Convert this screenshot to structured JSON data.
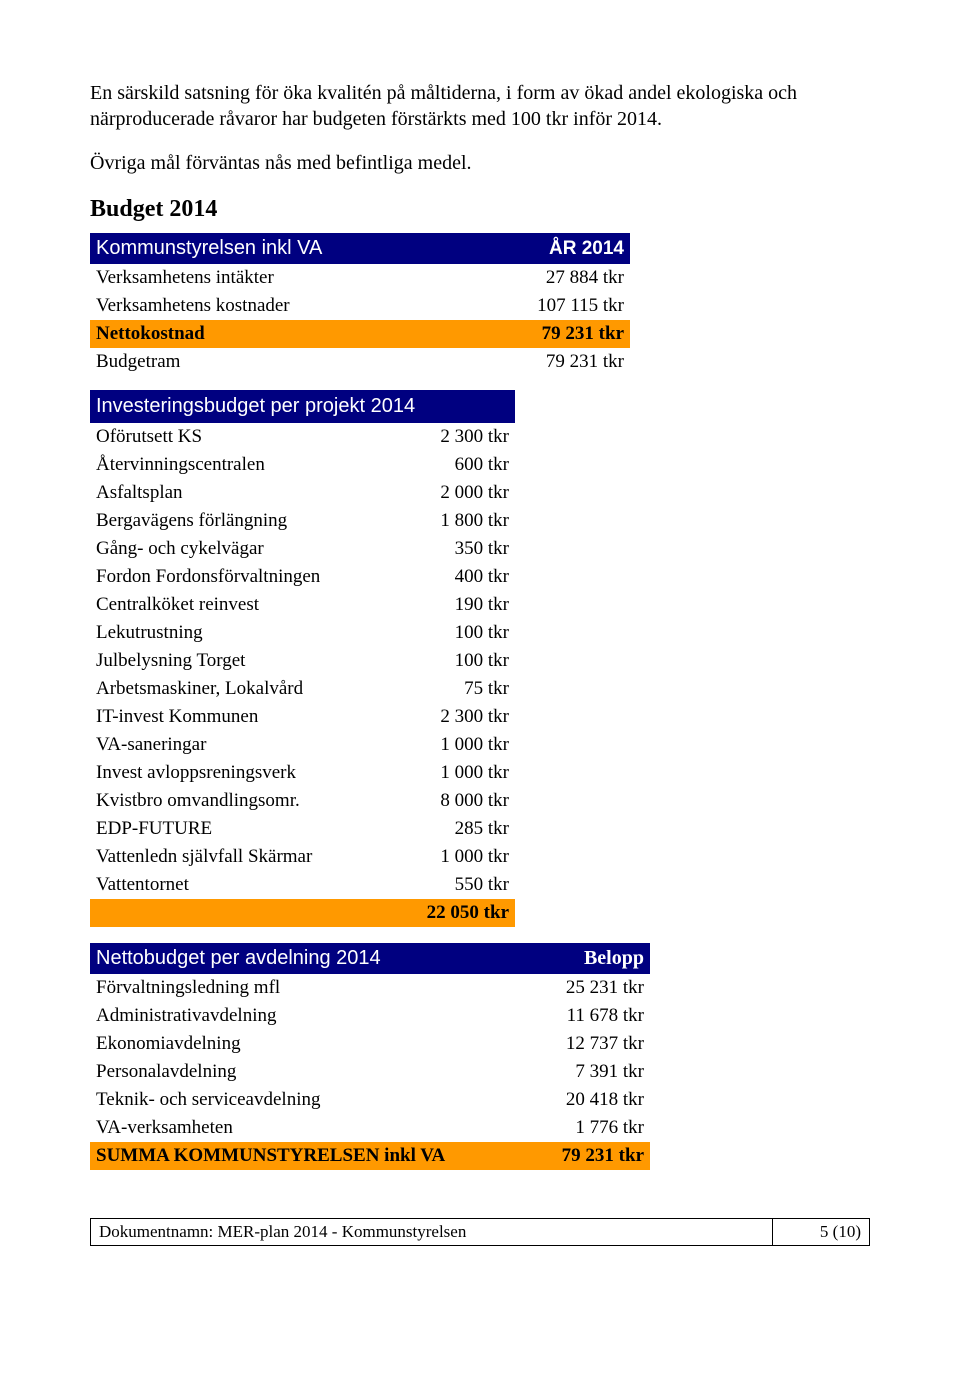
{
  "intro": {
    "para1": "En särskild satsning för öka kvalitén på måltiderna, i form av ökad andel ekologiska och närproducerade råvaror har budgeten förstärkts med 100 tkr inför 2014.",
    "para2": "Övriga mål förväntas nås med befintliga medel."
  },
  "section_title": "Budget 2014",
  "budget_table": {
    "header_left": "Kommunstyrelsen inkl VA",
    "header_right": "ÅR 2014",
    "rows": [
      {
        "label": "Verksamhetens intäkter",
        "value": "27 884 tkr",
        "style": "white"
      },
      {
        "label": "Verksamhetens kostnader",
        "value": "107 115 tkr",
        "style": "white"
      },
      {
        "label": "Nettokostnad",
        "value": "79 231 tkr",
        "style": "orange-bold"
      },
      {
        "label": "Budgetram",
        "value": "79 231 tkr",
        "style": "white"
      }
    ]
  },
  "invest_table": {
    "header": "Investeringsbudget per projekt 2014",
    "rows": [
      {
        "label": "Oförutsett KS",
        "value": "2 300 tkr"
      },
      {
        "label": "Återvinningscentralen",
        "value": "600 tkr"
      },
      {
        "label": "Asfaltsplan",
        "value": "2 000 tkr"
      },
      {
        "label": "Bergavägens förlängning",
        "value": "1 800 tkr"
      },
      {
        "label": "Gång- och cykelvägar",
        "value": "350 tkr"
      },
      {
        "label": "Fordon Fordonsförvaltningen",
        "value": "400 tkr"
      },
      {
        "label": "Centralköket reinvest",
        "value": "190 tkr"
      },
      {
        "label": "Lekutrustning",
        "value": "100 tkr"
      },
      {
        "label": "Julbelysning Torget",
        "value": "100 tkr"
      },
      {
        "label": "Arbetsmaskiner, Lokalvård",
        "value": "75 tkr"
      },
      {
        "label": "IT-invest Kommunen",
        "value": "2 300 tkr"
      },
      {
        "label": "VA-saneringar",
        "value": "1 000 tkr"
      },
      {
        "label": "Invest avloppsreningsverk",
        "value": "1 000 tkr"
      },
      {
        "label": "Kvistbro omvandlingsomr.",
        "value": "8 000 tkr"
      },
      {
        "label": "EDP-FUTURE",
        "value": "285 tkr"
      },
      {
        "label": "Vattenledn självfall Skärmar",
        "value": "1 000 tkr"
      },
      {
        "label": "Vattentornet",
        "value": "550 tkr"
      }
    ],
    "total": "22 050 tkr"
  },
  "netto_table": {
    "header_left": "Nettobudget per avdelning 2014",
    "header_right": "Belopp",
    "rows": [
      {
        "label": "Förvaltningsledning  mfl",
        "value": "25 231 tkr"
      },
      {
        "label": "Administrativavdelning",
        "value": "11 678 tkr"
      },
      {
        "label": "Ekonomiavdelning",
        "value": "12 737 tkr"
      },
      {
        "label": "Personalavdelning",
        "value": "7 391 tkr"
      },
      {
        "label": "Teknik- och serviceavdelning",
        "value": "20 418 tkr"
      },
      {
        "label": "VA-verksamheten",
        "value": "1 776 tkr"
      }
    ],
    "sum_label": "SUMMA KOMMUNSTYRELSEN inkl VA",
    "sum_value": "79 231 tkr"
  },
  "footer": {
    "left": "Dokumentnamn: MER-plan 2014 - Kommunstyrelsen",
    "right": "5 (10)"
  },
  "colors": {
    "header_blue": "#000080",
    "highlight_orange": "#ff9900",
    "text": "#000000",
    "background": "#ffffff"
  }
}
